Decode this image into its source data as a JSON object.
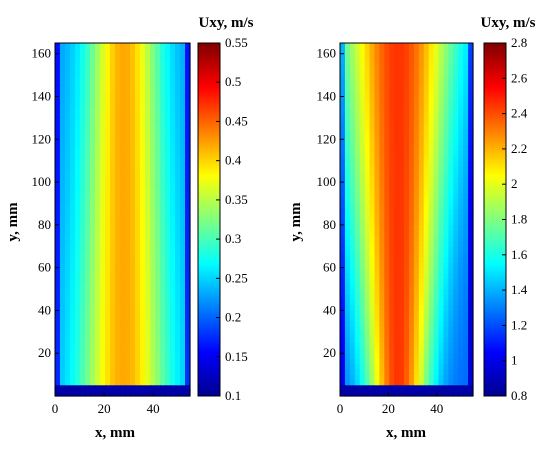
{
  "chart_data": [
    {
      "type": "heatmap",
      "title": "",
      "xlabel": "x, mm",
      "ylabel": "y, mm",
      "xlim": [
        0,
        55
      ],
      "ylim": [
        0,
        165
      ],
      "x_ticks": [
        0,
        20,
        40
      ],
      "y_ticks": [
        20,
        40,
        60,
        80,
        100,
        120,
        140,
        160
      ],
      "colorbar": {
        "title": "Uxy, m/s",
        "range": [
          0.1,
          0.55
        ],
        "ticks": [
          0.1,
          0.15,
          0.2,
          0.25,
          0.3,
          0.35,
          0.4,
          0.45,
          0.5,
          0.55
        ]
      },
      "profile": {
        "center_x": 28,
        "halfwidth_bottom": 17,
        "halfwidth_top": 14,
        "min_value": 0.22,
        "max_value": 0.42
      }
    },
    {
      "type": "heatmap",
      "title": "",
      "xlabel": "x, mm",
      "ylabel": "y, mm",
      "xlim": [
        0,
        55
      ],
      "ylim": [
        0,
        165
      ],
      "x_ticks": [
        0,
        20,
        40
      ],
      "y_ticks": [
        20,
        40,
        60,
        80,
        100,
        120,
        140,
        160
      ],
      "colorbar": {
        "title": "Uxy, m/s",
        "range": [
          0.8,
          2.8
        ],
        "ticks": [
          0.8,
          1,
          1.2,
          1.4,
          1.6,
          1.8,
          2,
          2.2,
          2.4,
          2.6,
          2.8
        ]
      },
      "profile": {
        "center_x": 24,
        "halfwidth_bottom": 12,
        "halfwidth_top": 22,
        "min_value": 1.25,
        "max_value": 2.45
      }
    }
  ]
}
